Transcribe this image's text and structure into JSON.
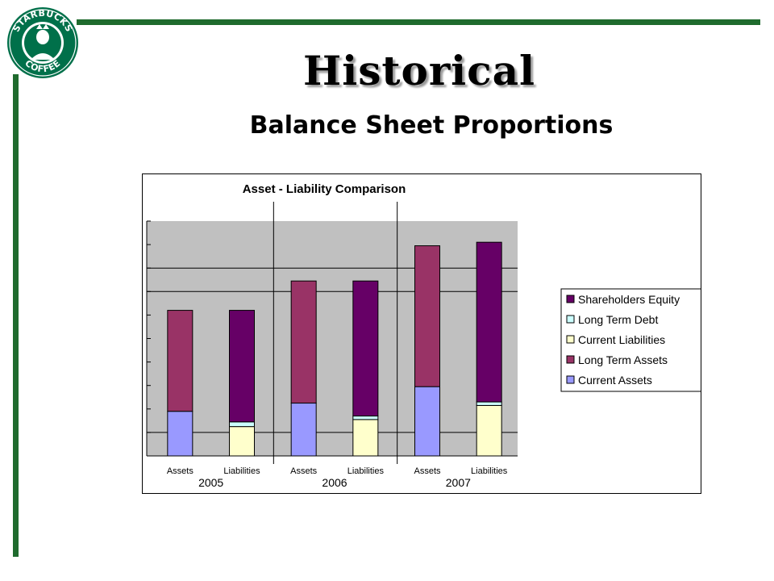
{
  "slide": {
    "title": "Historical",
    "subtitle": "Balance Sheet Proportions",
    "logo": {
      "top_text": "STARBUCKS",
      "bottom_text": "COFFEE"
    },
    "colors": {
      "accent_green": "#1f6b2e",
      "logo_green": "#00704a"
    }
  },
  "chart_data": {
    "type": "bar",
    "stacked": true,
    "title": "Asset - Liability Comparison",
    "groups": [
      "2005",
      "2006",
      "2007"
    ],
    "bar_labels": [
      "Assets",
      "Liabilities"
    ],
    "categories": [
      "Assets",
      "Liabilities",
      "Assets",
      "Liabilities",
      "Assets",
      "Liabilities"
    ],
    "ylim": [
      0,
      10
    ],
    "y_ticks": 10,
    "grid_major": [
      1,
      7,
      8
    ],
    "legend_position": "right",
    "series": [
      {
        "name": "Current Assets",
        "color": "#9999ff",
        "values": [
          1.9,
          0,
          2.25,
          0,
          2.95,
          0
        ]
      },
      {
        "name": "Long Term Assets",
        "color": "#993366",
        "values": [
          4.3,
          0,
          5.2,
          0,
          6.0,
          0
        ]
      },
      {
        "name": "Current Liabilities",
        "color": "#ffffcc",
        "values": [
          0,
          1.25,
          0,
          1.55,
          0,
          2.15
        ]
      },
      {
        "name": "Long Term Debt",
        "color": "#ccffff",
        "values": [
          0,
          0.2,
          0,
          0.15,
          0,
          0.15
        ]
      },
      {
        "name": "Shareholders Equity",
        "color": "#660066",
        "values": [
          0,
          4.75,
          0,
          5.75,
          0,
          6.8
        ]
      }
    ]
  }
}
